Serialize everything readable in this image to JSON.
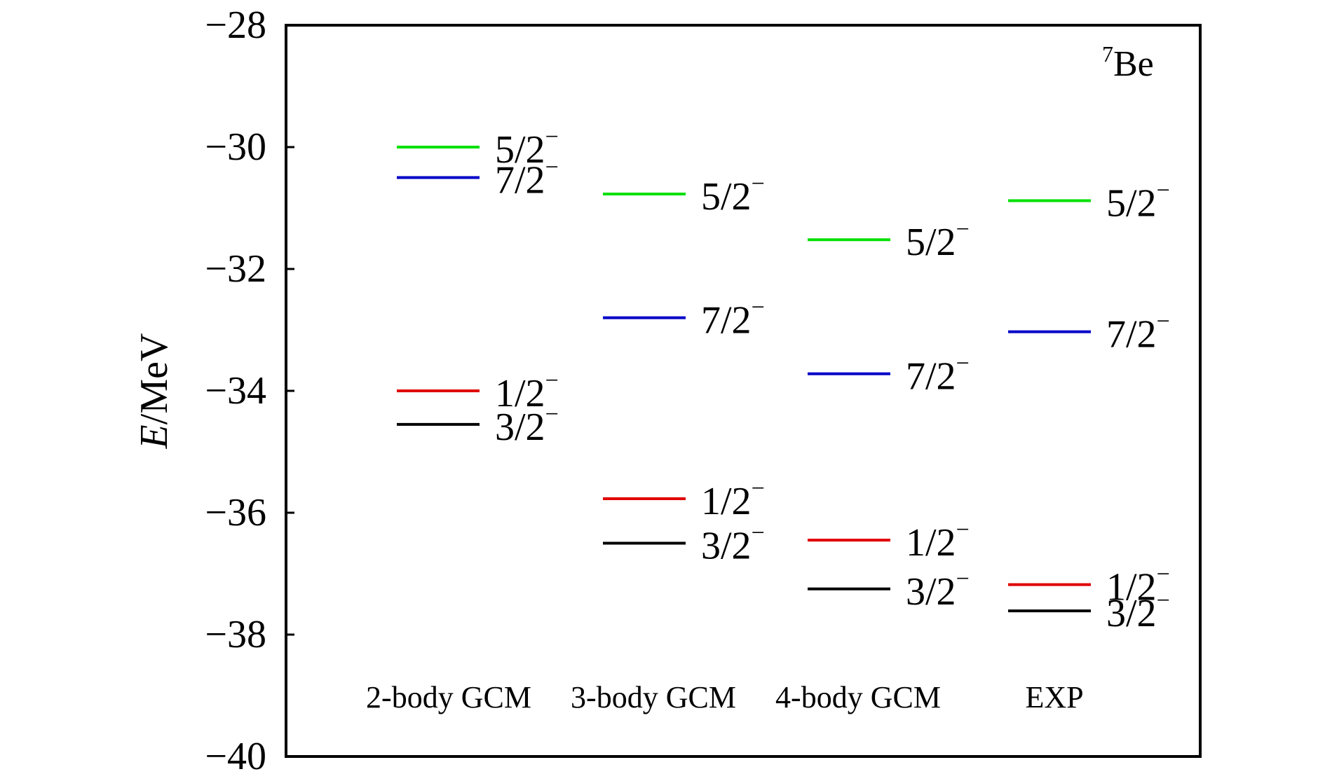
{
  "chart_data": {
    "type": "level-scheme",
    "title": "",
    "ylabel": {
      "italic": "E",
      "rest": "/MeV"
    },
    "ylim": [
      -40,
      -28
    ],
    "yticks": [
      -28,
      -30,
      -32,
      -34,
      -36,
      -38,
      -40
    ],
    "ytick_labels": [
      "−28",
      "−30",
      "−32",
      "−34",
      "−36",
      "−38",
      "−40"
    ],
    "annotation": {
      "superscript": "7",
      "text": "Be"
    },
    "colors": {
      "5/2-": "#00e000",
      "7/2-": "#0000c8",
      "1/2-": "#e00000",
      "3/2-": "#000000"
    },
    "groups": [
      {
        "label": "2-body GCM",
        "levels": [
          {
            "spin": "5/2",
            "parity": "−",
            "key": "5/2-",
            "energy": -30.0
          },
          {
            "spin": "7/2",
            "parity": "−",
            "key": "7/2-",
            "energy": -30.5
          },
          {
            "spin": "1/2",
            "parity": "−",
            "key": "1/2-",
            "energy": -34.0
          },
          {
            "spin": "3/2",
            "parity": "−",
            "key": "3/2-",
            "energy": -34.55
          }
        ]
      },
      {
        "label": "3-body GCM",
        "levels": [
          {
            "spin": "5/2",
            "parity": "−",
            "key": "5/2-",
            "energy": -30.77
          },
          {
            "spin": "7/2",
            "parity": "−",
            "key": "7/2-",
            "energy": -32.8
          },
          {
            "spin": "1/2",
            "parity": "−",
            "key": "1/2-",
            "energy": -35.77
          },
          {
            "spin": "3/2",
            "parity": "−",
            "key": "3/2-",
            "energy": -36.5
          }
        ]
      },
      {
        "label": "4-body GCM",
        "levels": [
          {
            "spin": "5/2",
            "parity": "−",
            "key": "5/2-",
            "energy": -31.52
          },
          {
            "spin": "7/2",
            "parity": "−",
            "key": "7/2-",
            "energy": -33.72
          },
          {
            "spin": "1/2",
            "parity": "−",
            "key": "1/2-",
            "energy": -36.45
          },
          {
            "spin": "3/2",
            "parity": "−",
            "key": "3/2-",
            "energy": -37.25
          }
        ]
      },
      {
        "label": "EXP",
        "levels": [
          {
            "spin": "5/2",
            "parity": "−",
            "key": "5/2-",
            "energy": -30.88
          },
          {
            "spin": "7/2",
            "parity": "−",
            "key": "7/2-",
            "energy": -33.03
          },
          {
            "spin": "1/2",
            "parity": "−",
            "key": "1/2-",
            "energy": -37.18
          },
          {
            "spin": "3/2",
            "parity": "−",
            "key": "3/2-",
            "energy": -37.61
          }
        ]
      }
    ]
  }
}
